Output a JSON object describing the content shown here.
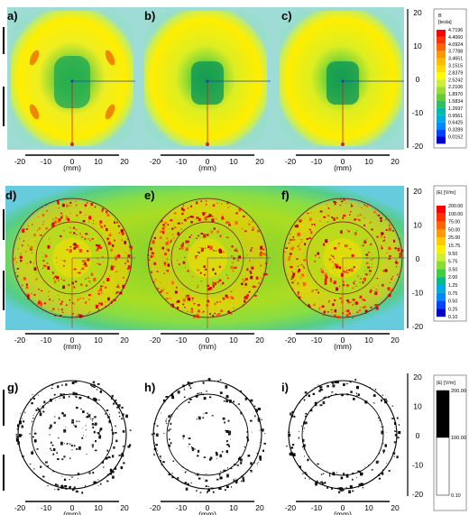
{
  "panels": {
    "labels": [
      "a)",
      "b)",
      "c)",
      "d)",
      "e)",
      "f)",
      "g)",
      "h)",
      "i)"
    ],
    "x_ticks": [
      "-20",
      "-10",
      "0",
      "10",
      "20"
    ],
    "y_ticks": [
      "20",
      "10",
      "0",
      "-10",
      "-20"
    ],
    "x_unit": "(mm)"
  },
  "colorbars": {
    "B": {
      "title_line1": "B",
      "title_line2": "[tesla]",
      "ticks": [
        "4.7196",
        "4.4060",
        "4.0924",
        "3.7788",
        "3.4651",
        "3.1515",
        "2.8379",
        "2.5242",
        "2.2106",
        "1.8970",
        "1.5834",
        "1.2697",
        "0.9561",
        "0.6425",
        "0.3289",
        "0.0152"
      ],
      "colors": [
        "#ff0000",
        "#ff3300",
        "#ff6600",
        "#ff9900",
        "#ffbb00",
        "#ffdd00",
        "#ffff00",
        "#ccee33",
        "#99dd33",
        "#66cc33",
        "#33bb66",
        "#00bbaa",
        "#00aadd",
        "#0088ff",
        "#0044ff",
        "#0000cc"
      ]
    },
    "E": {
      "title": "|E| [V/m]",
      "ticks": [
        "200.00",
        "100.00",
        "75.00",
        "50.00",
        "25.00",
        "15.75",
        "9.50",
        "5.75",
        "3.50",
        "2.00",
        "1.25",
        "0.75",
        "0.50",
        "0.25",
        "0.10"
      ],
      "colors": [
        "#ff0000",
        "#ff3300",
        "#ff6600",
        "#ff9900",
        "#ffcc00",
        "#ffee00",
        "#ccee33",
        "#88dd33",
        "#44cc44",
        "#00bb88",
        "#00aadd",
        "#0088ff",
        "#0044ff",
        "#0000cc"
      ]
    },
    "E_thresh": {
      "title": "|E| [V/m]",
      "ticks": [
        "200.00",
        "100.00",
        "0.10"
      ],
      "colors": [
        "#000000",
        "#ffffff"
      ]
    }
  }
}
